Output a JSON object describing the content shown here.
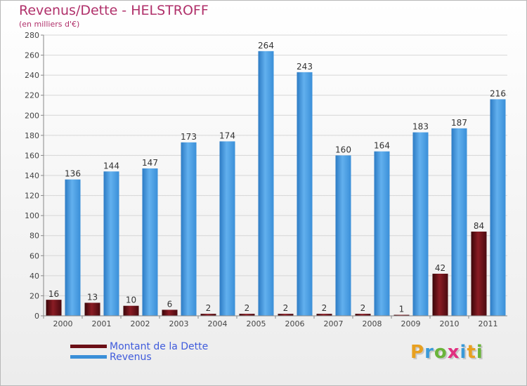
{
  "chart_data": {
    "type": "bar",
    "title": "Revenus/Dette - HELSTROFF",
    "subtitle": "(en milliers d'€)",
    "xlabel": "",
    "ylabel": "",
    "ylim": [
      0,
      280
    ],
    "ytick_step": 20,
    "grid": true,
    "categories": [
      "2000",
      "2001",
      "2002",
      "2003",
      "2004",
      "2005",
      "2006",
      "2007",
      "2008",
      "2009",
      "2010",
      "2011"
    ],
    "series": [
      {
        "name": "Montant de la Dette",
        "color": "#6b0f16",
        "values": [
          16,
          13,
          10,
          6,
          2,
          2,
          2,
          2,
          2,
          1,
          42,
          84
        ]
      },
      {
        "name": "Revenus",
        "color": "#3a8fd8",
        "values": [
          136,
          144,
          147,
          173,
          174,
          264,
          243,
          160,
          164,
          183,
          187,
          216
        ]
      }
    ]
  },
  "logo": {
    "letters": [
      "P",
      "r",
      "o",
      "x",
      "i",
      "t",
      "i"
    ],
    "colors": [
      "#e8a020",
      "#3a9ad8",
      "#6ab43a",
      "#e03080",
      "#3a9ad8",
      "#e8a020",
      "#6ab43a"
    ]
  }
}
